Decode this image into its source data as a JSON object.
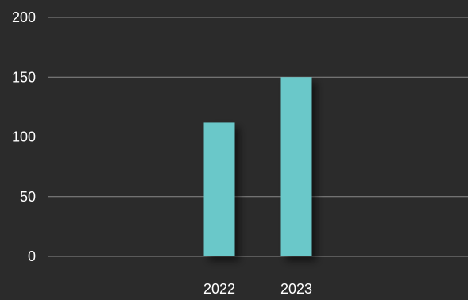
{
  "chart_data": {
    "type": "bar",
    "categories": [
      "2022",
      "2023"
    ],
    "values": [
      112,
      150
    ],
    "y_ticks": [
      "0",
      "50",
      "100",
      "150",
      "200"
    ],
    "ylim": [
      0,
      200
    ],
    "grid": true,
    "bar_color": "#6ac8c9",
    "background_color": "#2b2b2b",
    "grid_color": "#8a8a8a",
    "text_color": "#ffffff"
  }
}
